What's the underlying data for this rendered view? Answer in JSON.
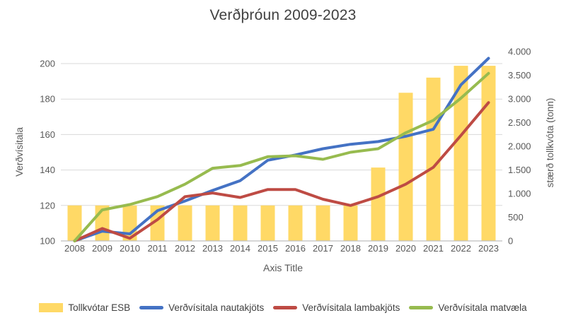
{
  "title": "Verðþróun 2009-2023",
  "chart_data": {
    "type": "combo-bar-line",
    "title": "Verðþróun 2009-2023",
    "categories": [
      "2008",
      "2009",
      "2010",
      "2011",
      "2012",
      "2013",
      "2014",
      "2015",
      "2016",
      "2017",
      "2018",
      "2019",
      "2020",
      "2021",
      "2022",
      "2023"
    ],
    "series": [
      {
        "name": "Tollkvótar ESB",
        "type": "bar",
        "axis": "right",
        "color": "#FFD966",
        "values": [
          750,
          750,
          750,
          750,
          750,
          750,
          750,
          750,
          750,
          750,
          750,
          1550,
          3130,
          3450,
          3700,
          3700
        ]
      },
      {
        "name": "Verðvísitala nautakjöts",
        "type": "line",
        "axis": "left",
        "color": "#4472C4",
        "values": [
          100,
          105.5,
          104,
          117,
          122.5,
          128.5,
          134,
          145.5,
          148.5,
          152,
          154.5,
          156,
          159,
          163,
          188,
          203
        ]
      },
      {
        "name": "Verðvísitala lambakjöts",
        "type": "line",
        "axis": "left",
        "color": "#BE4B44",
        "values": [
          100,
          107,
          101.5,
          112,
          125,
          127,
          124.5,
          129,
          129,
          123.5,
          120,
          125,
          132,
          141.5,
          159.5,
          178
        ]
      },
      {
        "name": "Verðvísitala matvæla",
        "type": "line",
        "axis": "left",
        "color": "#97BB4F",
        "values": [
          100,
          117.5,
          120.5,
          125,
          132,
          141,
          142.5,
          147.5,
          148,
          146,
          150,
          152,
          161,
          168,
          180.5,
          194.5
        ]
      }
    ],
    "x_axis": {
      "title": "Axis Title"
    },
    "left_axis": {
      "title": "Verðvísitala",
      "min": 100,
      "max": 210,
      "ticks": [
        100,
        120,
        140,
        160,
        180,
        200
      ]
    },
    "right_axis": {
      "title": "stærð tollkvóta (tonn)",
      "min": 0,
      "max": 4000,
      "ticks": [
        0,
        500,
        1000,
        1500,
        2000,
        2500,
        3000,
        3500,
        4000
      ],
      "tick_labels": [
        "0",
        "500",
        "1.000",
        "1.500",
        "2.000",
        "2.500",
        "3.000",
        "3.500",
        "4.000"
      ]
    },
    "legend_position": "bottom",
    "grid": true,
    "colors": {
      "gridline": "#D9D9D9",
      "axis_line": "#BFBFBF",
      "tick_text": "#595959",
      "title_text": "#404040"
    }
  }
}
